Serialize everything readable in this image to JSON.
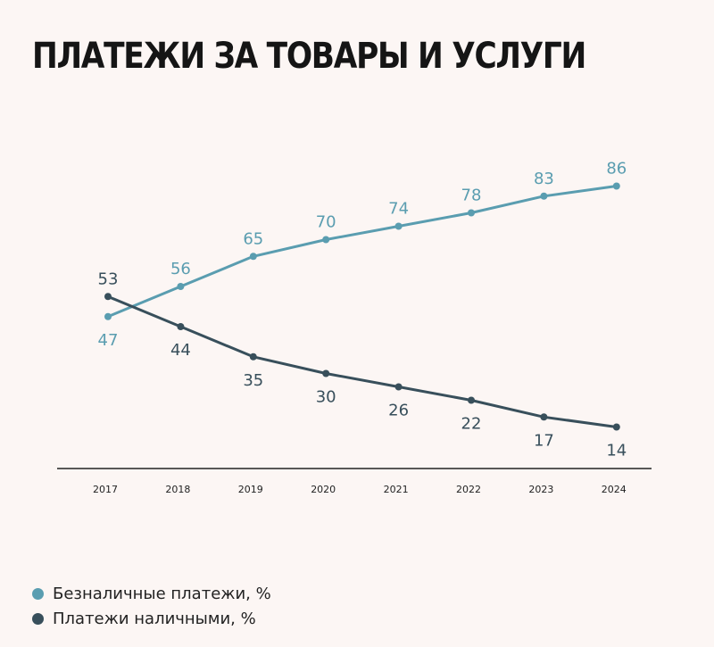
{
  "title": "ПЛАТЕЖИ ЗА ТОВАРЫ И УСЛУГИ",
  "colors": {
    "cashless": "#5a9db0",
    "cash": "#384f5b",
    "axis": "#222222"
  },
  "chart_data": {
    "type": "line",
    "x": [
      "2017",
      "2018",
      "2019",
      "2020",
      "2021",
      "2022",
      "2023",
      "2024"
    ],
    "series": [
      {
        "name": "Безналичные платежи, %",
        "values": [
          47,
          56,
          65,
          70,
          74,
          78,
          83,
          86
        ]
      },
      {
        "name": "Платежи наличными, %",
        "values": [
          53,
          44,
          35,
          30,
          26,
          22,
          17,
          14
        ]
      }
    ],
    "title": "ПЛАТЕЖИ ЗА ТОВАРЫ И УСЛУГИ",
    "ylim": [
      0,
      100
    ],
    "grid": false,
    "legend": "bottom-left"
  }
}
